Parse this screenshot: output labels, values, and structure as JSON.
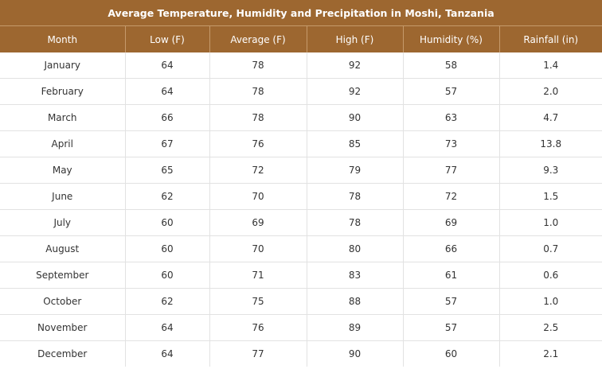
{
  "table": {
    "title": "Average Temperature, Humidity and Precipitation in Moshi, Tanzania",
    "headers": [
      "Month",
      "Low (F)",
      "Average (F)",
      "High (F)",
      "Humidity (%)",
      "Rainfall (in)"
    ],
    "rows": [
      [
        "January",
        "64",
        "78",
        "92",
        "58",
        "1.4"
      ],
      [
        "February",
        "64",
        "78",
        "92",
        "57",
        "2.0"
      ],
      [
        "March",
        "66",
        "78",
        "90",
        "63",
        "4.7"
      ],
      [
        "April",
        "67",
        "76",
        "85",
        "73",
        "13.8"
      ],
      [
        "May",
        "65",
        "72",
        "79",
        "77",
        "9.3"
      ],
      [
        "June",
        "62",
        "70",
        "78",
        "72",
        "1.5"
      ],
      [
        "July",
        "60",
        "69",
        "78",
        "69",
        "1.0"
      ],
      [
        "August",
        "60",
        "70",
        "80",
        "66",
        "0.7"
      ],
      [
        "September",
        "60",
        "71",
        "83",
        "61",
        "0.6"
      ],
      [
        "October",
        "62",
        "75",
        "88",
        "57",
        "1.0"
      ],
      [
        "November",
        "64",
        "76",
        "89",
        "57",
        "2.5"
      ],
      [
        "December",
        "64",
        "77",
        "90",
        "60",
        "2.1"
      ]
    ]
  },
  "colors": {
    "header_bg": "#9d6730",
    "header_text": "#ffffff",
    "cell_text": "#333333",
    "grid_line": "#e2e2e2"
  }
}
